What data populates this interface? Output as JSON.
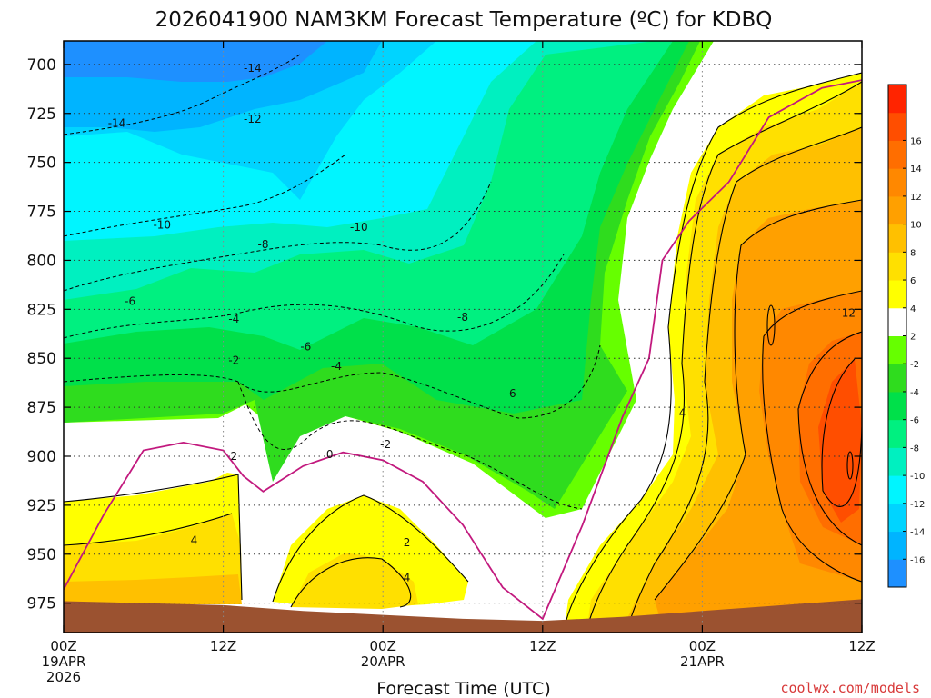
{
  "chart_data": {
    "type": "heatmap",
    "title": "2026041900 NAM3KM Forecast Temperature (ºC) for KDBQ",
    "xlabel": "Forecast Time (UTC)",
    "ylabel": "",
    "y_scale": "pressure (hPa), decreasing upward",
    "ylim": [
      990,
      688
    ],
    "xlim_hours": [
      0,
      60
    ],
    "y_ticks": [
      700,
      725,
      750,
      775,
      800,
      825,
      850,
      875,
      900,
      925,
      950,
      975
    ],
    "x_ticks": [
      {
        "hour": 0,
        "label": "00Z",
        "sub1": "19APR",
        "sub2": "2026"
      },
      {
        "hour": 12,
        "label": "12Z",
        "sub1": "",
        "sub2": ""
      },
      {
        "hour": 24,
        "label": "00Z",
        "sub1": "20APR",
        "sub2": ""
      },
      {
        "hour": 36,
        "label": "12Z",
        "sub1": "",
        "sub2": ""
      },
      {
        "hour": 48,
        "label": "00Z",
        "sub1": "21APR",
        "sub2": ""
      },
      {
        "hour": 60,
        "label": "12Z",
        "sub1": "",
        "sub2": ""
      }
    ],
    "grid": true,
    "colorbar": {
      "position": "right",
      "levels": [
        -18,
        -16,
        -14,
        -12,
        -10,
        -8,
        -6,
        -4,
        -2,
        2,
        4,
        6,
        8,
        10,
        12,
        14,
        16,
        18
      ],
      "tick_labels": [
        "-16",
        "-14",
        "-12",
        "-10",
        "-8",
        "-6",
        "-4",
        "-2",
        "2",
        "4",
        "6",
        "8",
        "10",
        "12",
        "14",
        "16"
      ],
      "colors": [
        "#1e90ff",
        "#00b4ff",
        "#00d4ff",
        "#00f5ff",
        "#00f0c0",
        "#00f080",
        "#00e04a",
        "#2fdc1e",
        "#66ff00",
        "#ffffff",
        "#ffff00",
        "#ffe000",
        "#ffc000",
        "#ffa000",
        "#ff8800",
        "#ff6e00",
        "#ff4e00",
        "#ff2400"
      ]
    },
    "ground_surface_hpa": [
      [
        0,
        974
      ],
      [
        6,
        975
      ],
      [
        12,
        976
      ],
      [
        18,
        979
      ],
      [
        24,
        981
      ],
      [
        30,
        983
      ],
      [
        36,
        984
      ],
      [
        42,
        982
      ],
      [
        48,
        979
      ],
      [
        54,
        976
      ],
      [
        60,
        973
      ]
    ],
    "freezing_line_hpa": [
      [
        0,
        968
      ],
      [
        3,
        930
      ],
      [
        6,
        897
      ],
      [
        9,
        893
      ],
      [
        12,
        897
      ],
      [
        13.5,
        910
      ],
      [
        15,
        918
      ],
      [
        18,
        905
      ],
      [
        21,
        898
      ],
      [
        24,
        902
      ],
      [
        27,
        913
      ],
      [
        30,
        935
      ],
      [
        33,
        967
      ],
      [
        36,
        983
      ],
      [
        39,
        935
      ],
      [
        42,
        880
      ],
      [
        44,
        850
      ],
      [
        45,
        800
      ],
      [
        47,
        780
      ],
      [
        50,
        760
      ],
      [
        53,
        727
      ],
      [
        57,
        712
      ],
      [
        60,
        708
      ]
    ],
    "annotations": {
      "contour_labels": [
        {
          "text": "-14",
          "hour": 14.2,
          "p": 702
        },
        {
          "text": "-14",
          "hour": 4.0,
          "p": 730
        },
        {
          "text": "-12",
          "hour": 14.2,
          "p": 728
        },
        {
          "text": "-10",
          "hour": 7.4,
          "p": 782
        },
        {
          "text": "-10",
          "hour": 22.2,
          "p": 783
        },
        {
          "text": "-8",
          "hour": 15.0,
          "p": 792
        },
        {
          "text": "-8",
          "hour": 30.0,
          "p": 829
        },
        {
          "text": "-6",
          "hour": 5.0,
          "p": 821
        },
        {
          "text": "-6",
          "hour": 18.2,
          "p": 844
        },
        {
          "text": "-6",
          "hour": 33.6,
          "p": 868
        },
        {
          "text": "-4",
          "hour": 12.8,
          "p": 830
        },
        {
          "text": "-4",
          "hour": 20.5,
          "p": 854
        },
        {
          "text": "-2",
          "hour": 12.8,
          "p": 851
        },
        {
          "text": "-2",
          "hour": 24.2,
          "p": 894
        },
        {
          "text": "0",
          "hour": 20.0,
          "p": 899
        },
        {
          "text": "2",
          "hour": 12.8,
          "p": 900
        },
        {
          "text": "2",
          "hour": 25.8,
          "p": 944
        },
        {
          "text": "4",
          "hour": 9.8,
          "p": 943
        },
        {
          "text": "4",
          "hour": 25.8,
          "p": 962
        },
        {
          "text": "4",
          "hour": 46.5,
          "p": 878
        },
        {
          "text": "12",
          "hour": 59.0,
          "p": 827
        }
      ]
    }
  },
  "credit": "coolwx.com/models"
}
